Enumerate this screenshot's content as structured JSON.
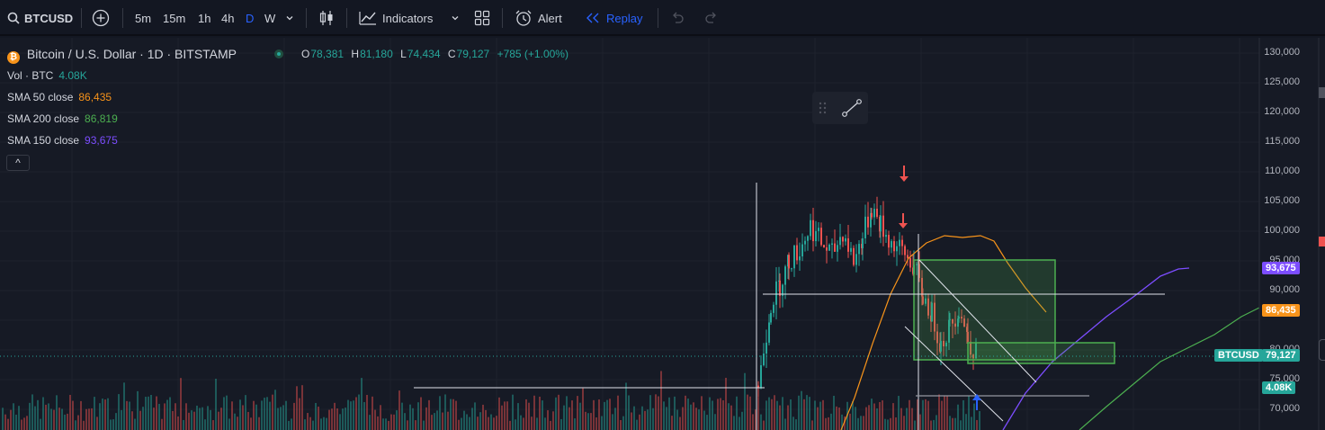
{
  "toolbar": {
    "symbol": "BTCUSD",
    "intervals": [
      "5m",
      "15m",
      "1h",
      "4h",
      "D",
      "W"
    ],
    "active_interval": "D",
    "indicators_label": "Indicators",
    "alert_label": "Alert",
    "replay_label": "Replay"
  },
  "legend": {
    "title": "Bitcoin / U.S. Dollar · 1D · BITSTAMP",
    "open_label": "O",
    "open": "78,381",
    "high_label": "H",
    "high": "81,180",
    "low_label": "L",
    "low": "74,434",
    "close_label": "C",
    "close": "79,127",
    "change": "+785 (+1.00%)",
    "vol_label": "Vol · BTC",
    "vol_value": "4.08K",
    "sma50_label": "SMA 50 close",
    "sma50_value": "86,435",
    "sma200_label": "SMA 200 close",
    "sma200_value": "86,819",
    "sma150_label": "SMA 150 close",
    "sma150_value": "93,675",
    "collapse_glyph": "^"
  },
  "price_axis": {
    "ticks": [
      "130,000",
      "125,000",
      "120,000",
      "115,000",
      "110,000",
      "105,000",
      "100,000",
      "95,000",
      "90,000",
      "86,435",
      "80,000",
      "75,000",
      "70,000"
    ]
  },
  "tags": {
    "sma150": "93,675",
    "sma50": "86,435",
    "symbol": "BTCUSD",
    "last_price": "79,127",
    "volume": "4.08K"
  },
  "colors": {
    "background": "#131722",
    "up": "#26a69a",
    "down": "#ef5350",
    "sma50": "#f7931a",
    "sma200": "#4caf50",
    "sma150": "#7c4dff",
    "replay": "#2962ff",
    "zone": "#4caf50"
  },
  "icons": {
    "search": "search-icon",
    "add": "plus-circle-icon",
    "chevron": "chevron-down-icon",
    "bars": "candlestick-icon",
    "indicators": "indicators-icon",
    "layouts": "grid-icon",
    "alert": "alarm-clock-icon",
    "replay": "rewind-icon",
    "undo": "undo-icon",
    "redo": "redo-icon"
  }
}
